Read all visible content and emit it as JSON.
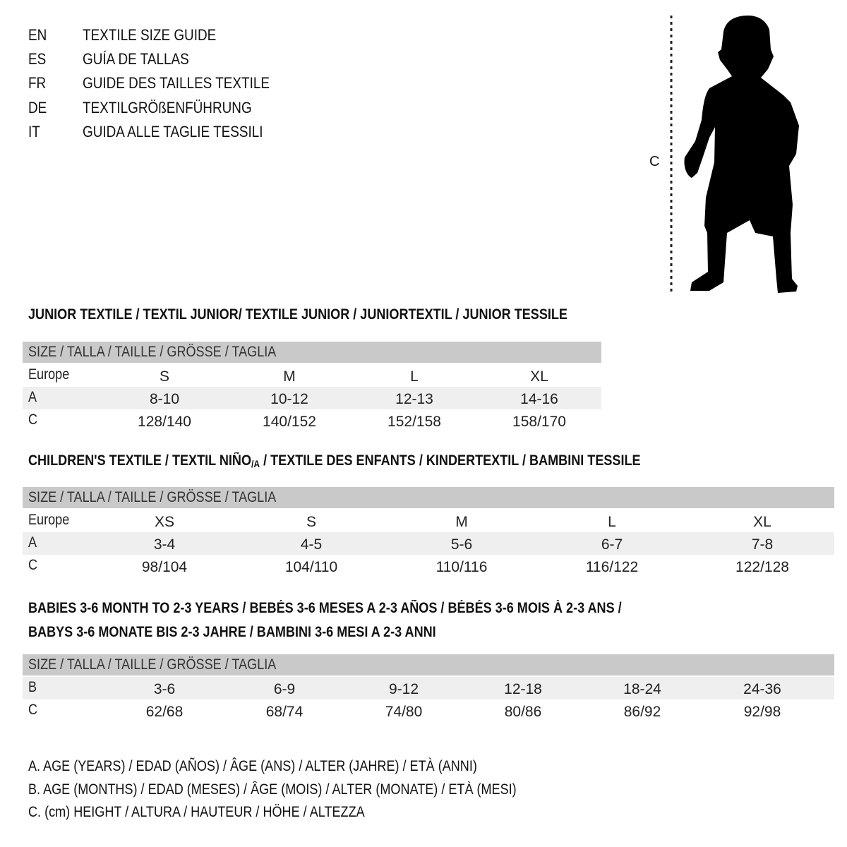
{
  "guide_titles": [
    {
      "code": "EN",
      "title": "TEXTILE SIZE GUIDE"
    },
    {
      "code": "ES",
      "title": "GUÍA DE TALLAS"
    },
    {
      "code": "FR",
      "title": "GUIDE DES TAILLES TEXTILE"
    },
    {
      "code": "DE",
      "title": "TEXTILGRÖßENFÜHRUNG"
    },
    {
      "code": "IT",
      "title": "GUIDA ALLE TAGLIE TESSILI"
    }
  ],
  "figure": {
    "measure_label": "C",
    "icon": "child-silhouette"
  },
  "junior": {
    "heading": "JUNIOR TEXTILE / TEXTIL JUNIOR/ TEXTILE JUNIOR / JUNIORTEXTIL / JUNIOR TESSILE",
    "header": "SIZE / TALLA / TAILLE / GRÖSSE / TAGLIA",
    "rows": [
      {
        "label": "Europe",
        "values": [
          "S",
          "M",
          "L",
          "XL"
        ]
      },
      {
        "label": "A",
        "values": [
          "8-10",
          "10-12",
          "12-13",
          "14-16"
        ]
      },
      {
        "label": "C",
        "values": [
          "128/140",
          "140/152",
          "152/158",
          "158/170"
        ]
      }
    ]
  },
  "children": {
    "heading_main": "CHILDREN'S TEXTILE / TEXTIL NIÑO",
    "heading_sub": "/A",
    "heading_rest": " / TEXTILE DES ENFANTS / KINDERTEXTIL / BAMBINI TESSILE",
    "header": "SIZE / TALLA / TAILLE / GRÖSSE / TAGLIA",
    "rows": [
      {
        "label": "Europe",
        "values": [
          "XS",
          "S",
          "M",
          "L",
          "XL"
        ]
      },
      {
        "label": "A",
        "values": [
          "3-4",
          "4-5",
          "5-6",
          "6-7",
          "7-8"
        ]
      },
      {
        "label": "C",
        "values": [
          "98/104",
          "104/110",
          "110/116",
          "116/122",
          "122/128"
        ]
      }
    ]
  },
  "babies": {
    "heading_line1": "BABIES 3-6 MONTH TO 2-3 YEARS / BEBÉS 3-6 MESES A 2-3 AÑOS / BÉBÉS 3-6 MOIS À 2-3 ANS /",
    "heading_line2": "BABYS 3-6 MONATE BIS 2-3 JAHRE / BAMBINI 3-6 MESI A 2-3 ANNI",
    "header": "SIZE / TALLA / TAILLE / GRÖSSE / TAGLIA",
    "rows": [
      {
        "label": "B",
        "values": [
          "3-6",
          "6-9",
          "9-12",
          "12-18",
          "18-24",
          "24-36"
        ]
      },
      {
        "label": "C",
        "values": [
          "62/68",
          "68/74",
          "74/80",
          "80/86",
          "86/92",
          "92/98"
        ]
      }
    ]
  },
  "legend": [
    "A. AGE (YEARS) / EDAD (AÑOS) / ÂGE (ANS) / ALTER (JAHRE) / ETÀ (ANNI)",
    "B. AGE (MONTHS) / EDAD (MESES) / ÂGE (MOIS) / ALTER (MONATE) / ETÀ (MESI)",
    "C. (cm) HEIGHT / ALTURA / HAUTEUR / HÖHE / ALTEZZA"
  ],
  "colors": {
    "header_gray": "#c9c9c9",
    "row_shade": "#efefef"
  }
}
